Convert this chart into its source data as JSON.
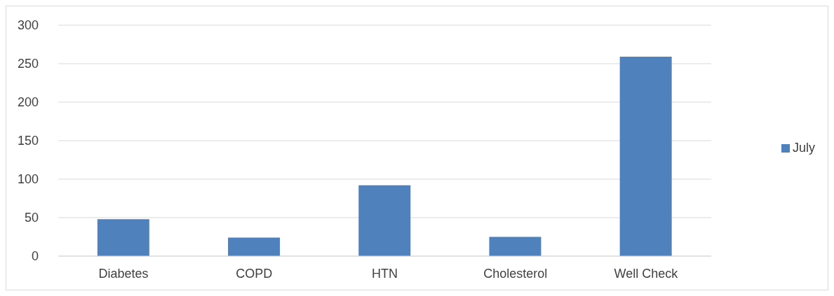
{
  "chart_data": {
    "type": "bar",
    "categories": [
      "Diabetes",
      "COPD",
      "HTN",
      "Cholesterol",
      "Well Check"
    ],
    "series": [
      {
        "name": "July",
        "color": "#4f81bd",
        "values": [
          48,
          24,
          92,
          25,
          259
        ]
      }
    ],
    "ylim": [
      0,
      300
    ],
    "yticks": [
      0,
      50,
      100,
      150,
      200,
      250,
      300
    ],
    "grid": "y",
    "legend": "right"
  }
}
